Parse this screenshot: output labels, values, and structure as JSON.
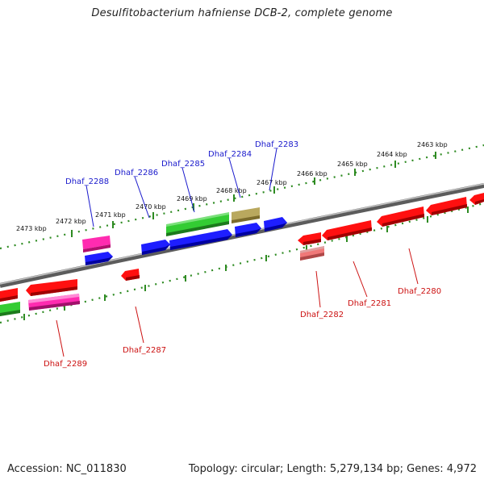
{
  "title": "Desulfitobacterium hafniense DCB-2, complete genome",
  "footer": {
    "accession": "Accession: NC_011830",
    "summary": "Topology: circular; Length: 5,279,134 bp; Genes: 4,972"
  },
  "colors": {
    "backbone": "#8a8a8a",
    "scale": "#2e8b22",
    "forward_label": "#1a1acc",
    "reverse_label": "#cc1111"
  },
  "scale_ticks": [
    {
      "label": "2473 kbp"
    },
    {
      "label": "2472 kbp"
    },
    {
      "label": "2471 kbp"
    },
    {
      "label": "2470 kbp"
    },
    {
      "label": "2469 kbp"
    },
    {
      "label": "2468 kbp"
    },
    {
      "label": "2467 kbp"
    },
    {
      "label": "2466 kbp"
    },
    {
      "label": "2465 kbp"
    },
    {
      "label": "2464 kbp"
    },
    {
      "label": "2463 kbp"
    }
  ],
  "gene_labels": {
    "forward": [
      "Dhaf_2288",
      "Dhaf_2286",
      "Dhaf_2285",
      "Dhaf_2284",
      "Dhaf_2283"
    ],
    "reverse": [
      "Dhaf_2289",
      "Dhaf_2287",
      "Dhaf_2282",
      "Dhaf_2281",
      "Dhaf_2280"
    ]
  }
}
